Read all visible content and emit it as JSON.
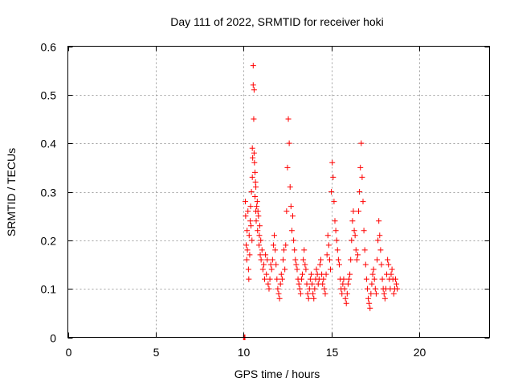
{
  "chart_data": {
    "type": "scatter",
    "title": "Day 111 of 2022, SRMTID for receiver hoki",
    "xlabel": "GPS time / hours",
    "ylabel": "SRMTID / TECUs",
    "xlim": [
      0,
      24
    ],
    "ylim": [
      0,
      0.6
    ],
    "xticks": [
      0,
      5,
      10,
      15,
      20
    ],
    "yticks": [
      0,
      0.1,
      0.2,
      0.3,
      0.4,
      0.5,
      0.6
    ],
    "grid": true,
    "marker": "+",
    "colors": {
      "series": "#ff0000",
      "grid": "#a0a0a0",
      "axes": "#000000"
    },
    "series": [
      {
        "name": "SRMTID",
        "x": [
          10.0,
          10.02,
          10.05,
          10.08,
          10.1,
          10.12,
          10.15,
          10.18,
          10.2,
          10.22,
          10.25,
          10.28,
          10.3,
          10.32,
          10.35,
          10.38,
          10.4,
          10.42,
          10.45,
          10.48,
          10.5,
          10.5,
          10.52,
          10.55,
          10.55,
          10.58,
          10.6,
          10.6,
          10.62,
          10.65,
          10.65,
          10.68,
          10.7,
          10.7,
          10.72,
          10.75,
          10.78,
          10.8,
          10.82,
          10.85,
          10.88,
          10.9,
          10.92,
          10.95,
          10.98,
          11.0,
          11.05,
          11.1,
          11.15,
          11.2,
          11.25,
          11.3,
          11.35,
          11.4,
          11.45,
          11.5,
          11.55,
          11.6,
          11.65,
          11.7,
          11.75,
          11.8,
          11.85,
          11.9,
          11.95,
          12.0,
          12.05,
          12.1,
          12.15,
          12.2,
          12.25,
          12.3,
          12.35,
          12.4,
          12.45,
          12.5,
          12.55,
          12.6,
          12.65,
          12.7,
          12.75,
          12.8,
          12.85,
          12.9,
          12.95,
          13.0,
          13.05,
          13.1,
          13.15,
          13.2,
          13.25,
          13.3,
          13.35,
          13.4,
          13.45,
          13.5,
          13.55,
          13.6,
          13.65,
          13.7,
          13.75,
          13.8,
          13.85,
          13.9,
          13.95,
          14.0,
          14.05,
          14.1,
          14.15,
          14.2,
          14.25,
          14.3,
          14.35,
          14.4,
          14.45,
          14.5,
          14.55,
          14.6,
          14.65,
          14.7,
          14.75,
          14.8,
          14.85,
          14.9,
          14.95,
          15.0,
          15.05,
          15.1,
          15.15,
          15.2,
          15.25,
          15.3,
          15.35,
          15.4,
          15.45,
          15.5,
          15.55,
          15.6,
          15.65,
          15.7,
          15.75,
          15.8,
          15.85,
          15.9,
          15.95,
          16.0,
          16.05,
          16.1,
          16.15,
          16.2,
          16.25,
          16.3,
          16.35,
          16.4,
          16.45,
          16.5,
          16.55,
          16.6,
          16.65,
          16.7,
          16.75,
          16.8,
          16.85,
          16.9,
          16.95,
          17.0,
          17.05,
          17.1,
          17.15,
          17.2,
          17.25,
          17.3,
          17.35,
          17.4,
          17.45,
          17.5,
          17.55,
          17.6,
          17.65,
          17.7,
          17.75,
          17.8,
          17.85,
          17.9,
          17.95,
          18.0,
          18.05,
          18.1,
          18.15,
          18.2,
          18.25,
          18.3,
          18.35,
          18.4,
          18.45,
          18.5,
          18.55,
          18.6,
          18.65,
          18.7,
          18.75
        ],
        "y": [
          0.0,
          0.0,
          0.0,
          0.0,
          0.28,
          0.25,
          0.19,
          0.16,
          0.22,
          0.18,
          0.26,
          0.14,
          0.12,
          0.21,
          0.17,
          0.24,
          0.27,
          0.23,
          0.3,
          0.2,
          0.33,
          0.39,
          0.37,
          0.56,
          0.52,
          0.45,
          0.51,
          0.38,
          0.36,
          0.34,
          0.29,
          0.32,
          0.31,
          0.26,
          0.24,
          0.27,
          0.28,
          0.22,
          0.26,
          0.25,
          0.19,
          0.21,
          0.23,
          0.17,
          0.2,
          0.16,
          0.18,
          0.14,
          0.15,
          0.12,
          0.17,
          0.13,
          0.16,
          0.11,
          0.1,
          0.12,
          0.15,
          0.14,
          0.16,
          0.19,
          0.21,
          0.18,
          0.15,
          0.12,
          0.1,
          0.09,
          0.08,
          0.11,
          0.13,
          0.12,
          0.16,
          0.18,
          0.14,
          0.19,
          0.26,
          0.35,
          0.45,
          0.4,
          0.31,
          0.27,
          0.22,
          0.25,
          0.2,
          0.18,
          0.16,
          0.15,
          0.14,
          0.12,
          0.11,
          0.1,
          0.09,
          0.12,
          0.13,
          0.16,
          0.18,
          0.15,
          0.14,
          0.11,
          0.09,
          0.08,
          0.1,
          0.12,
          0.13,
          0.11,
          0.09,
          0.08,
          0.1,
          0.12,
          0.14,
          0.13,
          0.11,
          0.12,
          0.15,
          0.16,
          0.13,
          0.11,
          0.12,
          0.1,
          0.09,
          0.13,
          0.17,
          0.21,
          0.19,
          0.16,
          0.14,
          0.3,
          0.36,
          0.33,
          0.28,
          0.24,
          0.22,
          0.2,
          0.18,
          0.16,
          0.15,
          0.12,
          0.1,
          0.09,
          0.11,
          0.12,
          0.1,
          0.08,
          0.07,
          0.09,
          0.11,
          0.12,
          0.13,
          0.16,
          0.2,
          0.24,
          0.26,
          0.22,
          0.21,
          0.18,
          0.16,
          0.17,
          0.26,
          0.3,
          0.35,
          0.4,
          0.33,
          0.28,
          0.22,
          0.18,
          0.15,
          0.12,
          0.1,
          0.08,
          0.07,
          0.06,
          0.09,
          0.11,
          0.13,
          0.14,
          0.12,
          0.1,
          0.09,
          0.16,
          0.2,
          0.24,
          0.21,
          0.18,
          0.15,
          0.12,
          0.1,
          0.09,
          0.08,
          0.1,
          0.13,
          0.16,
          0.15,
          0.12,
          0.1,
          0.13,
          0.14,
          0.12,
          0.09,
          0.1,
          0.12,
          0.11,
          0.1
        ]
      }
    ]
  }
}
